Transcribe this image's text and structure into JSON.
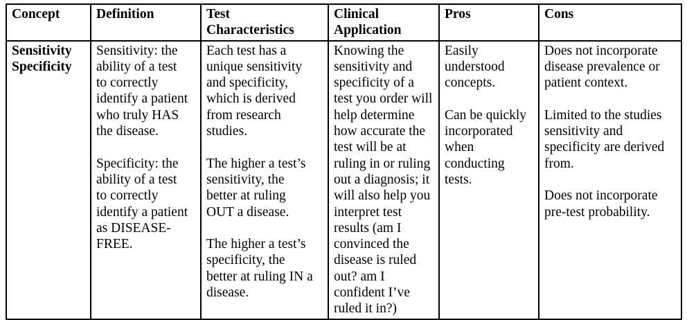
{
  "page": {
    "background_color": "#ffffff",
    "border_color": "#000000",
    "text_color": "#000000"
  },
  "table": {
    "headers": [
      "Concept",
      "Definition",
      "Test Characteristics",
      "Clinical Application",
      "Pros",
      "Cons"
    ],
    "row": {
      "concept": "Sensitivity Specificity",
      "definition": [
        "Sensitivity: the ability of a test to correctly identify a patient who truly HAS the disease.",
        "Specificity: the ability of a test to correctly identify a patient as DISEASE-FREE."
      ],
      "test_characteristics": [
        "Each test has a unique sensitivity and specificity, which is derived from research studies.",
        "The higher a test’s sensitivity, the better at ruling OUT a disease.",
        "The higher a test’s specificity, the better at ruling IN a disease."
      ],
      "clinical_application": [
        "Knowing the sensitivity and specificity of a test you order will help determine how accurate the test will be at ruling in or ruling out a diagnosis; it will also help you interpret test results (am I convinced the disease is ruled out? am I confident I’ve ruled it in?)"
      ],
      "pros": [
        "Easily understood concepts.",
        "Can be quickly incorporated when conducting tests."
      ],
      "cons": [
        "Does not incorporate disease prevalence or patient context.",
        "Limited to the studies sensitivity and specificity are derived from.",
        "Does not incorporate pre-test probability."
      ]
    }
  }
}
